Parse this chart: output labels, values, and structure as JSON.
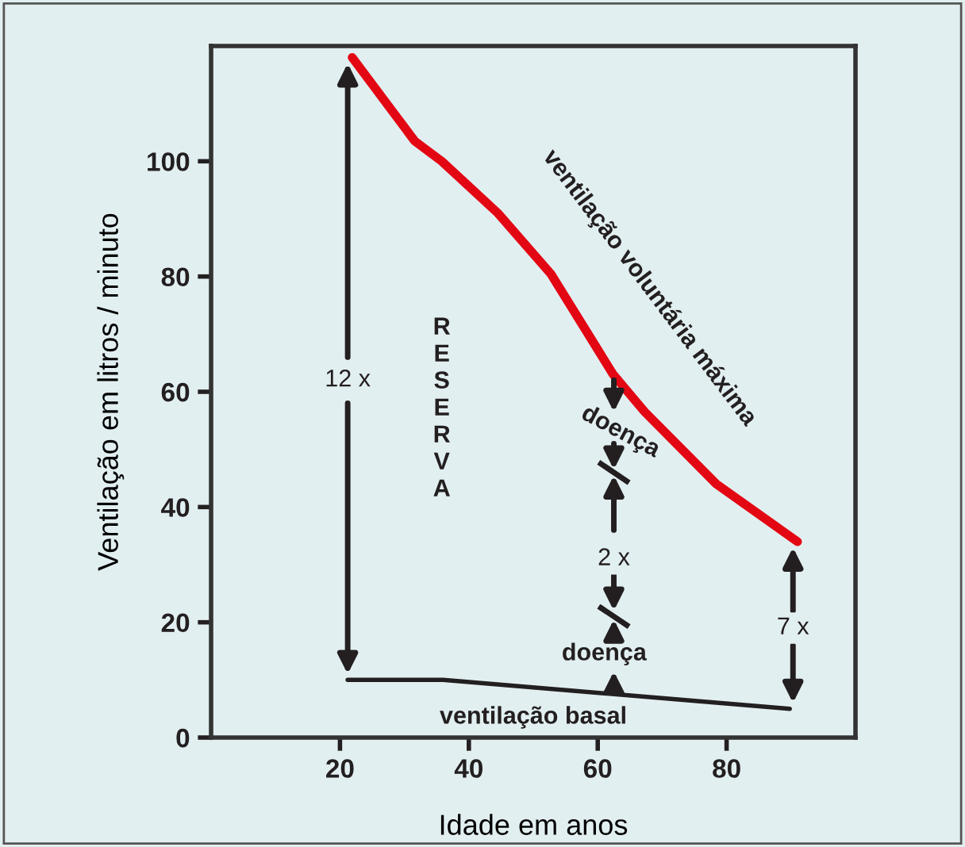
{
  "chart_data": {
    "type": "line",
    "xlabel": "Idade em anos",
    "ylabel": "Ventilação em litros / minuto",
    "xlim": [
      0,
      100
    ],
    "ylim": [
      0,
      120
    ],
    "xticks": [
      20,
      40,
      60,
      80
    ],
    "yticks": [
      0,
      20,
      40,
      60,
      80,
      100
    ],
    "grid": false,
    "marker": "none",
    "line_style": "solid",
    "series": [
      {
        "color": "#e30613",
        "x": [
          21.9,
          31.6,
          35.8,
          44.5,
          52.7,
          62.4,
          67.3,
          78.4,
          91
        ],
        "values": [
          118,
          103.5,
          100,
          91,
          80.5,
          63,
          56.5,
          44,
          34
        ]
      },
      {
        "color": "#231f20",
        "x": [
          21.2,
          36,
          89.8
        ],
        "values": [
          10,
          10,
          5
        ]
      }
    ],
    "annotations": [
      "ventilação voluntária máxima",
      "RESERVA",
      "12 x",
      "doença",
      "2 x",
      "doença",
      "ventilação basal",
      "7 x"
    ]
  }
}
